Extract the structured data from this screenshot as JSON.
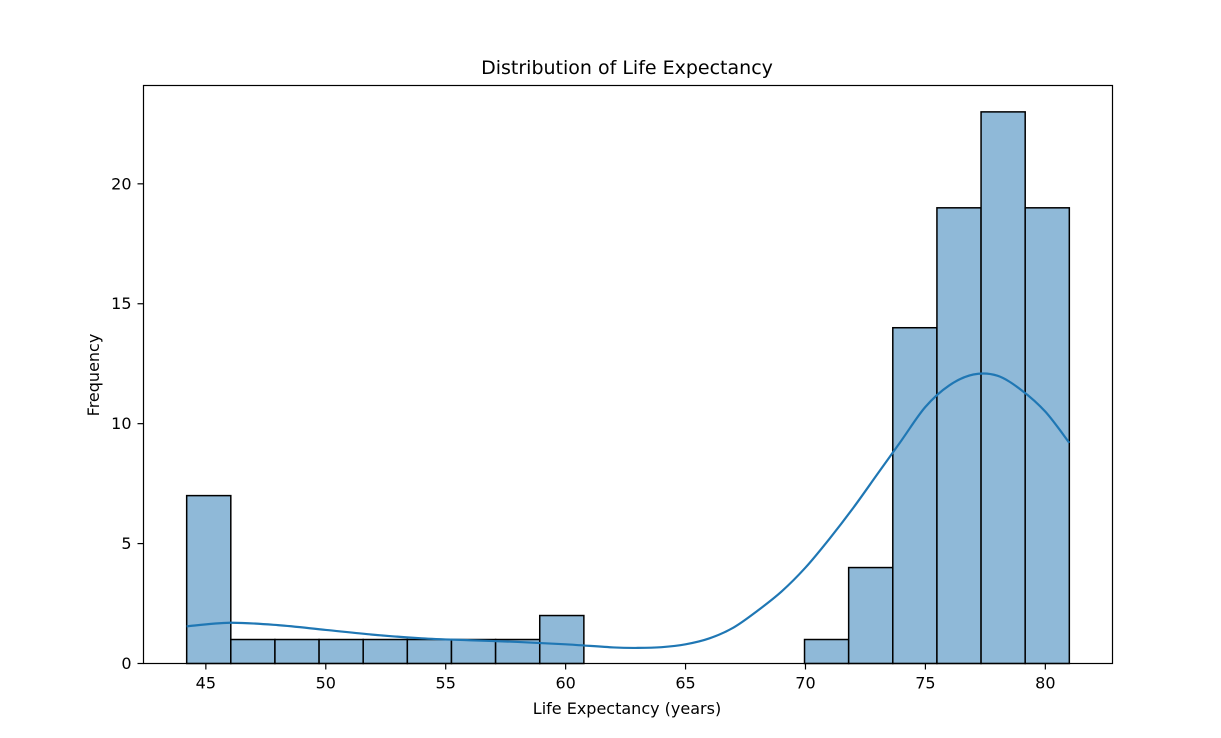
{
  "chart_data": {
    "type": "bar",
    "subtype": "histogram",
    "title": "Distribution of Life Expectancy",
    "xlabel": "Life Expectancy (years)",
    "ylabel": "Frequency",
    "xlim": [
      42.4,
      82.8
    ],
    "ylim": [
      0,
      24.1
    ],
    "grid": false,
    "x_ticks": [
      45,
      50,
      55,
      60,
      65,
      70,
      75,
      80
    ],
    "y_ticks": [
      0,
      5,
      10,
      15,
      20
    ],
    "bin_edges": [
      44.2,
      46.04,
      47.88,
      49.72,
      51.56,
      53.4,
      55.24,
      57.08,
      58.92,
      60.76,
      62.6,
      64.44,
      66.28,
      68.12,
      69.96,
      71.8,
      73.64,
      75.48,
      77.32,
      79.16,
      81.0
    ],
    "counts": [
      7,
      1,
      1,
      1,
      1,
      1,
      1,
      1,
      2,
      0,
      0,
      0,
      0,
      0,
      1,
      4,
      14,
      19,
      23,
      19
    ],
    "kde": {
      "x": [
        44.2,
        46.0,
        48.0,
        50.0,
        52.0,
        54.0,
        56.0,
        58.0,
        60.0,
        62.0,
        63.0,
        64.0,
        65.0,
        66.0,
        67.0,
        68.0,
        69.0,
        70.0,
        71.0,
        72.0,
        73.0,
        74.0,
        75.0,
        76.0,
        77.0,
        78.0,
        79.0,
        80.0,
        81.0
      ],
      "y": [
        1.55,
        1.7,
        1.6,
        1.4,
        1.2,
        1.05,
        0.97,
        0.9,
        0.8,
        0.67,
        0.65,
        0.68,
        0.8,
        1.05,
        1.5,
        2.2,
        3.0,
        4.0,
        5.2,
        6.5,
        7.9,
        9.3,
        10.7,
        11.6,
        12.05,
        12.0,
        11.4,
        10.5,
        9.2
      ]
    },
    "colors": {
      "bar_fill": "#8fb9d8",
      "bar_edge": "#000000",
      "kde_line": "#1f77b4"
    }
  }
}
